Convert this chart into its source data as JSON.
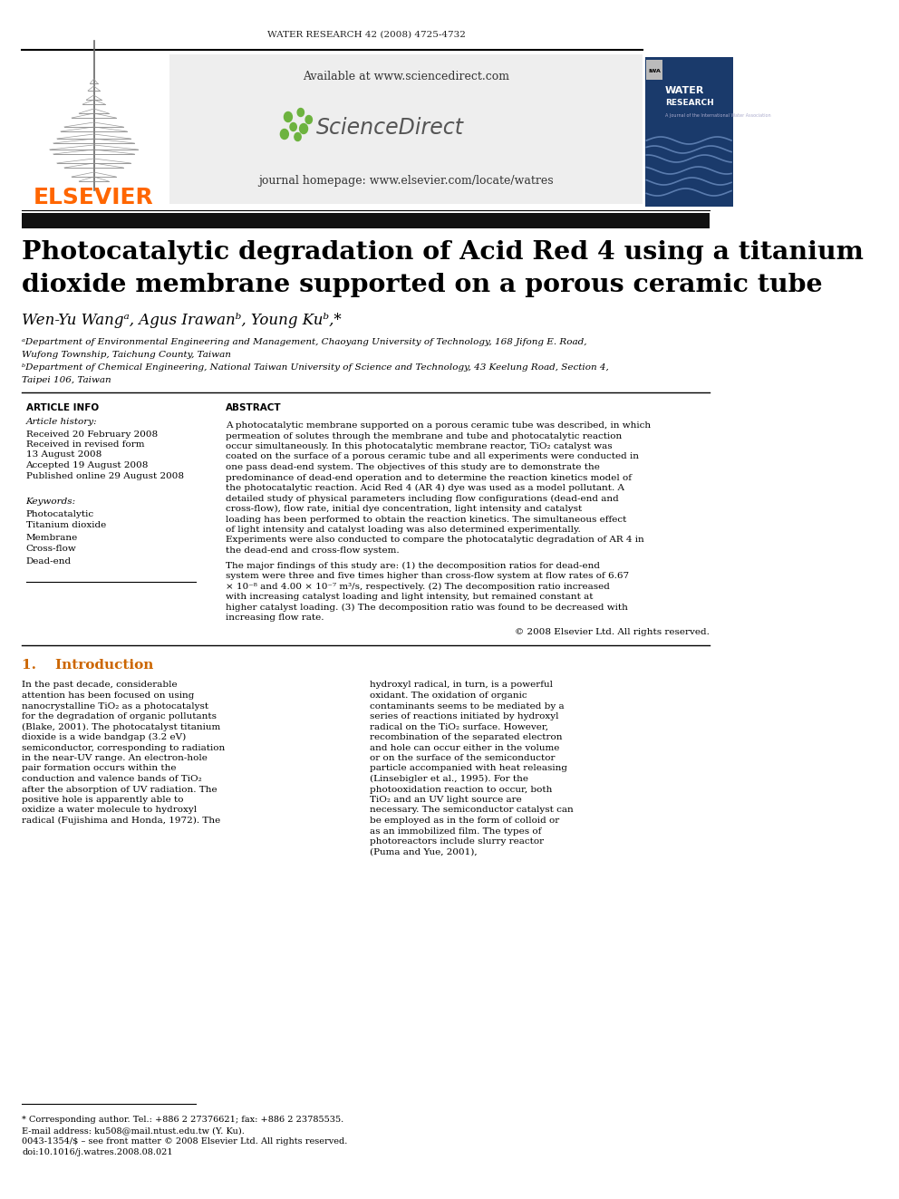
{
  "journal_header": "WATER RESEARCH 42 (2008) 4725-4732",
  "available_text": "Available at www.sciencedirect.com",
  "journal_homepage": "journal homepage: www.elsevier.com/locate/watres",
  "elsevier_color": "#FF6600",
  "elsevier_text": "ELSEVIER",
  "sciencedirect_text": "ScienceDirect",
  "sciencedirect_green": "#6db33f",
  "header_bg": "#eeeeee",
  "dark_bar_color": "#111111",
  "blue_bar_color": "#1a3a6b",
  "paper_title_line1": "Photocatalytic degradation of Acid Red 4 using a titanium",
  "paper_title_line2": "dioxide membrane supported on a porous ceramic tube",
  "authors": "Wen-Yu Wangᵃ, Agus Irawanᵇ, Young Kuᵇ,*",
  "affil_a": "ᵃDepartment of Environmental Engineering and Management, Chaoyang University of Technology, 168 Jifong E. Road,",
  "affil_a2": "Wufong Township, Taichung County, Taiwan",
  "affil_b": "ᵇDepartment of Chemical Engineering, National Taiwan University of Science and Technology, 43 Keelung Road, Section 4,",
  "affil_b2": "Taipei 106, Taiwan",
  "section_article_info": "ARTICLE INFO",
  "section_abstract": "ABSTRACT",
  "article_history_title": "Article history:",
  "history_lines": [
    "Received 20 February 2008",
    "Received in revised form",
    "13 August 2008",
    "Accepted 19 August 2008",
    "Published online 29 August 2008"
  ],
  "keywords_title": "Keywords:",
  "keywords": [
    "Photocatalytic",
    "Titanium dioxide",
    "Membrane",
    "Cross-flow",
    "Dead-end"
  ],
  "abstract_text": "A photocatalytic membrane supported on a porous ceramic tube was described, in which permeation of solutes through the membrane and tube and photocatalytic reaction occur simultaneously. In this photocatalytic membrane reactor, TiO₂ catalyst was coated on the surface of a porous ceramic tube and all experiments were conducted in one pass dead-end system. The objectives of this study are to demonstrate the predominance of dead-end operation and to determine the reaction kinetics model of the photocatalytic reaction. Acid Red 4 (AR 4) dye was used as a model pollutant. A detailed study of physical parameters including flow configurations (dead-end and cross-flow), flow rate, initial dye concentration, light intensity and catalyst loading has been performed to obtain the reaction kinetics. The simultaneous effect of light intensity and catalyst loading was also determined experimentally. Experiments were also conducted to compare the photocatalytic degradation of AR 4 in the dead-end and cross-flow system.",
  "abstract_findings": "The major findings of this study are: (1) the decomposition ratios for dead-end system were three and five times higher than cross-flow system at flow rates of 6.67 × 10⁻⁸ and 4.00 × 10⁻⁷ m³/s, respectively. (2) The decomposition ratio increased with increasing catalyst loading and light intensity, but remained constant at higher catalyst loading. (3) The decomposition ratio was found to be decreased with increasing flow rate.",
  "copyright": "© 2008 Elsevier Ltd. All rights reserved.",
  "section_intro": "1.    Introduction",
  "intro_col1": "In the past decade, considerable attention has been focused on using nanocrystalline TiO₂ as a photocatalyst for the degradation of organic pollutants (Blake, 2001). The photocatalyst titanium dioxide is a wide bandgap (3.2 eV) semiconductor, corresponding to radiation in the near-UV range. An electron-hole pair formation occurs within the conduction and valence bands of TiO₂ after the absorption of UV radiation. The positive hole is apparently able to oxidize a water molecule to hydroxyl radical (Fujishima and Honda, 1972). The",
  "intro_col2": "hydroxyl radical, in turn, is a powerful oxidant. The oxidation of organic contaminants seems to be mediated by a series of reactions initiated by hydroxyl radical on the TiO₂ surface. However, recombination of the separated electron and hole can occur either in the volume or on the surface of the semiconductor particle accompanied with heat releasing (Linsebigler et al., 1995). For the photooxidation reaction to occur, both TiO₂ and an UV light source are necessary.    The semiconductor catalyst can be employed as in the form of colloid or as an immobilized film. The types of photoreactors include slurry reactor (Puma and Yue, 2001),",
  "footnote_lines": [
    "* Corresponding author. Tel.: +886 2 27376621; fax: +886 2 23785535.",
    "E-mail address: ku508@mail.ntust.edu.tw (Y. Ku).",
    "0043-1354/$ – see front matter © 2008 Elsevier Ltd. All rights reserved.",
    "doi:10.1016/j.watres.2008.08.021"
  ],
  "bg_color": "#ffffff",
  "text_color": "#000000",
  "line_color": "#000000"
}
